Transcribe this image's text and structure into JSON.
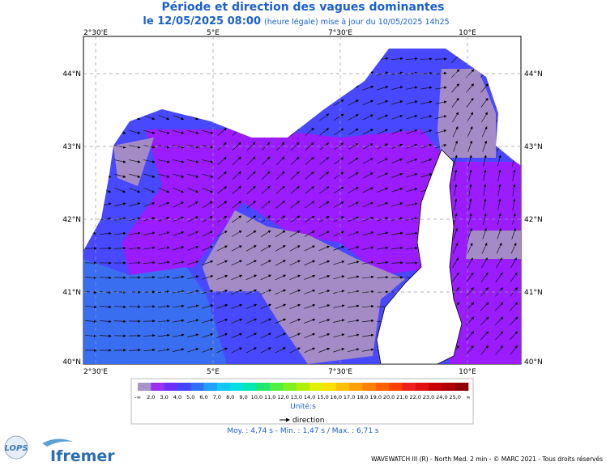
{
  "header": {
    "title": "Période et direction des vagues dominantes",
    "date": "le 12/05/2025 08:00",
    "note": "(heure légale) mise à jour du 10/05/2025 14h25"
  },
  "map": {
    "lon_labels": [
      "2°30'E",
      "5°E",
      "7°30'E",
      "10°E"
    ],
    "lat_labels": [
      "44°N",
      "43°N",
      "42°N",
      "41°N",
      "40°N"
    ]
  },
  "colorbar": {
    "labels": [
      "-∞",
      "2,0",
      "3,0",
      "4,0",
      "5,0",
      "6,0",
      "7,0",
      "8,0",
      "9,0",
      "10,0",
      "11,0",
      "12,0",
      "13,0",
      "14,0",
      "15,0",
      "16,0",
      "17,0",
      "18,0",
      "19,0",
      "20,0",
      "21,0",
      "22,0",
      "23,0",
      "24,0",
      "25,0",
      "∞"
    ],
    "colors": [
      "#a894c8",
      "#9a30f0",
      "#6a30fa",
      "#4444ff",
      "#3070ff",
      "#20a0ff",
      "#10c8f0",
      "#00e0e0",
      "#00e8b0",
      "#20e870",
      "#50f040",
      "#80f020",
      "#b0f000",
      "#e0f000",
      "#ffe000",
      "#ffc000",
      "#ffa000",
      "#ff8000",
      "#ff6000",
      "#ff4000",
      "#f02020",
      "#e01010",
      "#c80000",
      "#b00000",
      "#900000"
    ],
    "unit": "Unité:s"
  },
  "legend": {
    "arrow_label": "direction"
  },
  "stats": "Moy. : 4,74 s  -  Min. : 1,47 s / Max. : 6,71 s",
  "footer": {
    "credits": "WAVEWATCH III (R) - North Med. 2 min - © MARC 2021 - Tous droits réservés",
    "logo_lops": "LOPS",
    "logo_ifremer": "Ifremer"
  }
}
